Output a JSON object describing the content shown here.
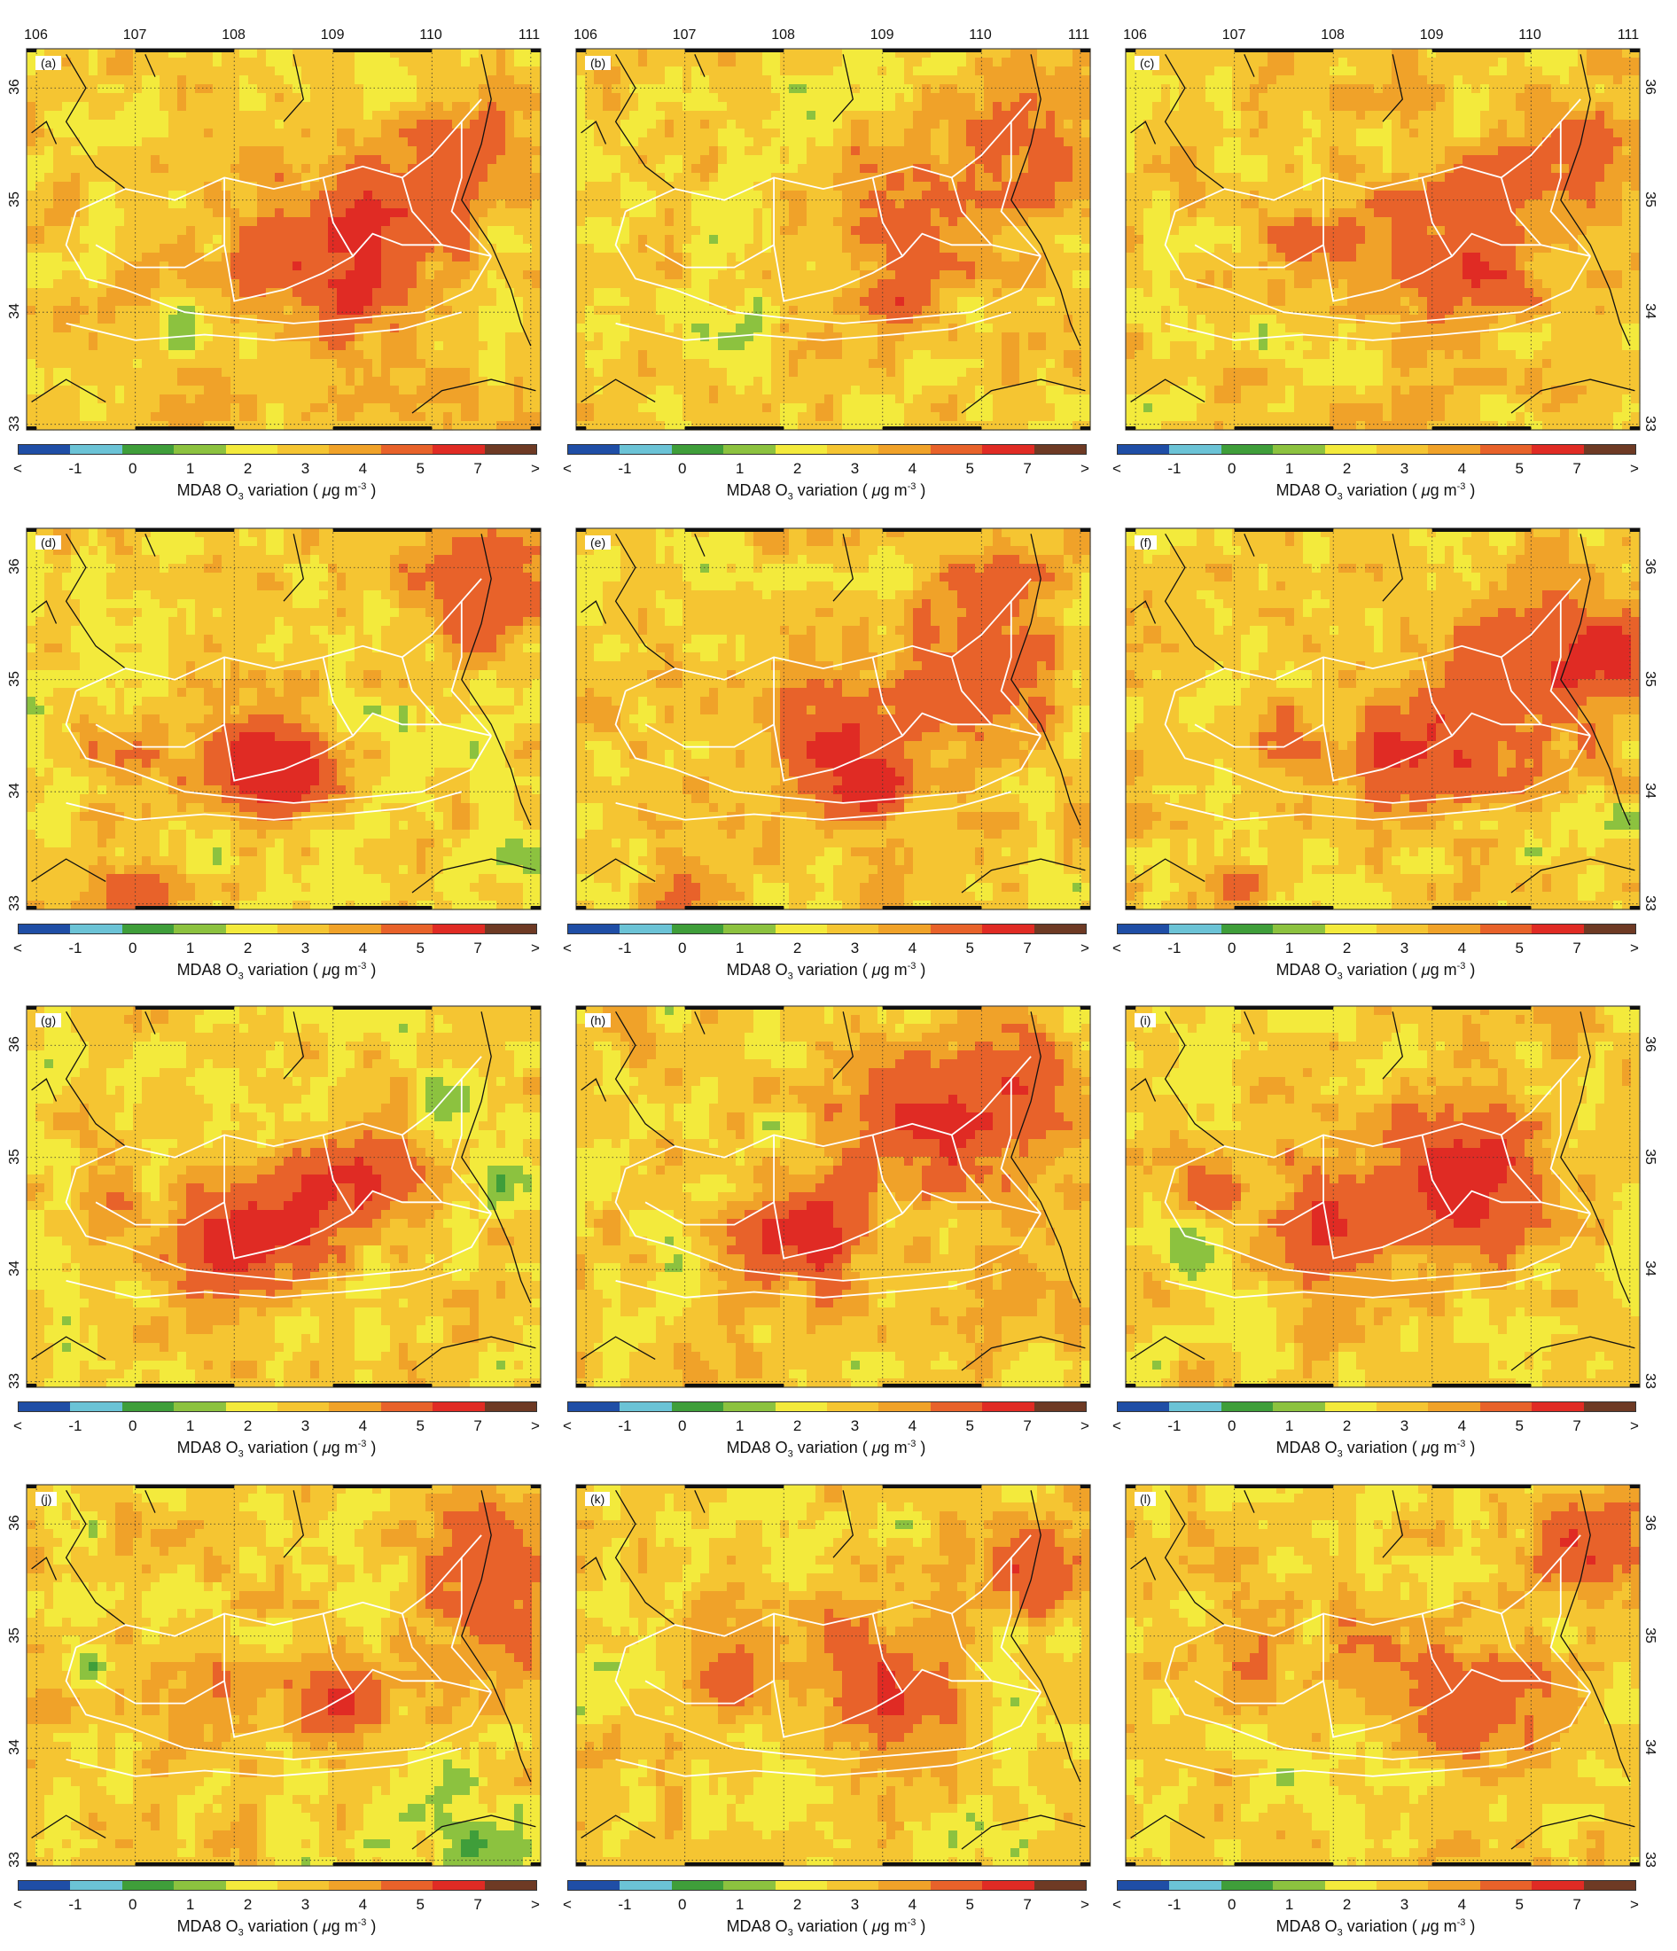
{
  "figure": {
    "colorbar": {
      "colors": [
        "#1f4ea6",
        "#6bc3d6",
        "#3f9e3a",
        "#8cc23f",
        "#f3ea3c",
        "#f5c532",
        "#f0a229",
        "#e8622a",
        "#e02b24",
        "#6e3a24"
      ],
      "tick_labels": [
        "<",
        "-1",
        "0",
        "1",
        "2",
        "3",
        "4",
        "5",
        "7",
        ">"
      ],
      "title_prefix": "MDA8 O",
      "title_sub": "3",
      "title_mid": " variation ( ",
      "title_mu": "μ",
      "title_unit": "g m",
      "title_sup": "-3",
      "title_suffix": " )"
    },
    "map": {
      "type": "heatmap",
      "lon_ticks": [
        "106",
        "107",
        "108",
        "109",
        "110",
        "111"
      ],
      "lat_ticks": [
        "33",
        "34",
        "35",
        "36"
      ],
      "lon_range": [
        105.9,
        111.1
      ],
      "lat_range": [
        32.95,
        36.35
      ],
      "grid": true,
      "grid_style": "dotted"
    },
    "panels": [
      {
        "label": "(a)",
        "base": 3.4,
        "hot": [
          [
            108.9,
            34.6,
            2.5,
            0.9
          ],
          [
            109.6,
            34.8,
            2.0,
            0.7
          ],
          [
            110.5,
            35.4,
            2.5,
            0.6
          ],
          [
            108.4,
            34.3,
            1.5,
            0.4
          ],
          [
            109.2,
            34.1,
            3.0,
            0.3
          ]
        ],
        "cold": [
          [
            107.4,
            33.85,
            1.6,
            0.3
          ],
          [
            108.8,
            34.3,
            0.8,
            0.15
          ]
        ]
      },
      {
        "label": "(b)",
        "base": 3.3,
        "hot": [
          [
            109.3,
            34.7,
            2.5,
            0.6
          ],
          [
            110.5,
            35.3,
            2.5,
            0.8
          ],
          [
            109.1,
            34.1,
            3.0,
            0.3
          ],
          [
            108.8,
            35.2,
            1.5,
            0.5
          ]
        ],
        "cold": [
          [
            107.6,
            33.9,
            1.5,
            0.3
          ],
          [
            108.9,
            34.3,
            1.0,
            0.2
          ],
          [
            109.7,
            33.5,
            0.8,
            0.2
          ]
        ]
      },
      {
        "label": "(c)",
        "base": 3.4,
        "hot": [
          [
            108.6,
            34.5,
            2.2,
            0.7
          ],
          [
            109.5,
            34.3,
            3.0,
            0.5
          ],
          [
            110.4,
            35.3,
            2.5,
            0.8
          ],
          [
            109.3,
            35.0,
            2.0,
            0.5
          ],
          [
            107.6,
            34.6,
            1.5,
            0.4
          ]
        ],
        "cold": [
          [
            107.4,
            33.8,
            1.5,
            0.3
          ]
        ]
      },
      {
        "label": "(d)",
        "base": 3.1,
        "hot": [
          [
            108.3,
            34.3,
            4.5,
            0.6
          ],
          [
            108.6,
            34.1,
            3.0,
            0.4
          ],
          [
            110.4,
            35.8,
            3.5,
            0.7
          ],
          [
            106.9,
            34.3,
            2.2,
            0.5
          ],
          [
            107.0,
            33.1,
            2.5,
            0.4
          ]
        ],
        "cold": [
          [
            110.9,
            33.4,
            1.6,
            0.4
          ],
          [
            110.6,
            34.6,
            1.0,
            0.3
          ]
        ]
      },
      {
        "label": "(e)",
        "base": 3.3,
        "hot": [
          [
            108.6,
            34.4,
            4.0,
            0.7
          ],
          [
            109.9,
            35.0,
            3.0,
            0.8
          ],
          [
            110.1,
            35.9,
            2.0,
            0.5
          ],
          [
            106.9,
            33.1,
            2.0,
            0.4
          ],
          [
            108.9,
            34.0,
            3.5,
            0.3
          ]
        ],
        "cold": [
          [
            109.5,
            33.9,
            1.0,
            0.2
          ],
          [
            110.3,
            35.5,
            1.0,
            0.2
          ]
        ]
      },
      {
        "label": "(f)",
        "base": 3.2,
        "hot": [
          [
            108.8,
            34.3,
            4.0,
            0.7
          ],
          [
            110.1,
            35.1,
            3.5,
            1.0
          ],
          [
            110.8,
            35.3,
            3.0,
            0.4
          ],
          [
            107.0,
            33.2,
            2.0,
            0.3
          ],
          [
            107.3,
            34.5,
            1.8,
            0.4
          ]
        ],
        "cold": [
          [
            110.9,
            33.7,
            1.0,
            0.3
          ]
        ]
      },
      {
        "label": "(g)",
        "base": 3.2,
        "hot": [
          [
            108.0,
            34.2,
            4.5,
            0.6
          ],
          [
            108.8,
            34.6,
            3.5,
            0.6
          ],
          [
            109.3,
            34.9,
            2.5,
            0.5
          ],
          [
            106.7,
            34.4,
            1.8,
            0.4
          ]
        ],
        "cold": [
          [
            110.3,
            35.5,
            1.5,
            0.4
          ],
          [
            110.8,
            34.8,
            1.6,
            0.4
          ],
          [
            106.6,
            33.4,
            1.0,
            0.3
          ],
          [
            106.2,
            35.9,
            1.0,
            0.3
          ]
        ]
      },
      {
        "label": "(h)",
        "base": 3.3,
        "hot": [
          [
            108.2,
            34.3,
            4.5,
            0.6
          ],
          [
            109.7,
            35.3,
            3.5,
            0.8
          ],
          [
            110.4,
            35.8,
            2.0,
            0.5
          ],
          [
            108.9,
            35.4,
            1.5,
            0.5
          ]
        ],
        "cold": [
          [
            107.0,
            34.1,
            1.5,
            0.3
          ],
          [
            109.5,
            33.9,
            1.0,
            0.2
          ]
        ]
      },
      {
        "label": "(i)",
        "base": 3.3,
        "hot": [
          [
            108.0,
            34.4,
            3.5,
            0.7
          ],
          [
            109.4,
            34.7,
            4.0,
            0.7
          ],
          [
            109.2,
            35.1,
            2.5,
            0.6
          ],
          [
            106.7,
            34.7,
            1.8,
            0.4
          ]
        ],
        "cold": [
          [
            106.5,
            34.1,
            1.5,
            0.3
          ],
          [
            107.4,
            33.2,
            1.2,
            0.2
          ],
          [
            110.3,
            35.5,
            1.0,
            0.3
          ]
        ]
      },
      {
        "label": "(j)",
        "base": 3.3,
        "hot": [
          [
            109.1,
            34.4,
            3.5,
            0.5
          ],
          [
            110.6,
            35.8,
            3.0,
            0.7
          ],
          [
            110.6,
            35.0,
            2.0,
            0.5
          ],
          [
            107.9,
            34.6,
            1.5,
            0.4
          ]
        ],
        "cold": [
          [
            110.3,
            33.2,
            2.0,
            0.5
          ],
          [
            106.5,
            34.8,
            1.5,
            0.3
          ],
          [
            110.1,
            33.8,
            1.2,
            0.3
          ]
        ]
      },
      {
        "label": "(k)",
        "base": 3.2,
        "hot": [
          [
            109.2,
            34.4,
            3.5,
            0.6
          ],
          [
            110.6,
            35.6,
            3.5,
            0.6
          ],
          [
            107.4,
            34.6,
            2.0,
            0.4
          ],
          [
            108.7,
            35.0,
            1.5,
            0.6
          ]
        ],
        "cold": [
          [
            109.9,
            33.2,
            1.5,
            0.4
          ],
          [
            110.7,
            35.0,
            0.8,
            0.3
          ]
        ]
      },
      {
        "label": "(l)",
        "base": 3.3,
        "hot": [
          [
            109.5,
            34.4,
            3.5,
            0.6
          ],
          [
            110.6,
            35.8,
            3.5,
            0.6
          ],
          [
            108.6,
            34.8,
            1.8,
            0.6
          ],
          [
            107.2,
            34.7,
            1.5,
            0.4
          ]
        ],
        "cold": [
          [
            109.0,
            34.4,
            1.0,
            0.15
          ],
          [
            107.5,
            33.8,
            0.8,
            0.3
          ]
        ]
      }
    ]
  }
}
